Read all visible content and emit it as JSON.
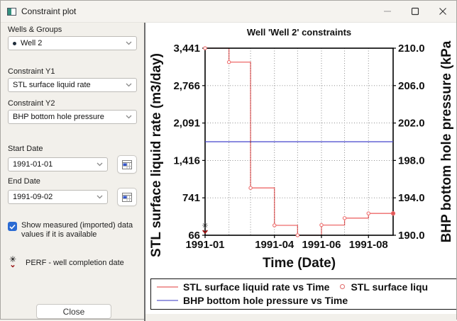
{
  "window": {
    "title": "Constraint plot"
  },
  "sidebar": {
    "wells_groups_label": "Wells & Groups",
    "wells_select_value": "Well 2",
    "constraint_y1_label": "Constraint Y1",
    "constraint_y1_value": "STL surface liquid rate",
    "constraint_y2_label": "Constraint Y2",
    "constraint_y2_value": "BHP bottom hole pressure",
    "start_date_label": "Start Date",
    "start_date_value": "1991-01-01",
    "end_date_label": "End Date",
    "end_date_value": "1991-09-02",
    "checkbox_label": "Show measured (imported) data values if it is available",
    "checkbox_checked": true,
    "perf_label": "PERF - well completion date",
    "close_button": "Close"
  },
  "chart_data": {
    "type": "line",
    "title": "Well 'Well 2' constraints",
    "xlabel": "Time (Date)",
    "y1_label": "STL surface liquid rate (m3/day)",
    "y2_label": "BHP bottom hole pressure (kPa",
    "grid": true,
    "legend_position": "bottom",
    "x_domain_days": [
      0,
      244
    ],
    "x_ticks": [
      {
        "label": "1991-01",
        "day": 0
      },
      {
        "label": "1991-04",
        "day": 90
      },
      {
        "label": "1991-06",
        "day": 151
      },
      {
        "label": "1991-08",
        "day": 212
      }
    ],
    "x_grid_days": [
      31,
      59,
      90,
      120,
      151,
      181,
      212
    ],
    "y1_range": [
      66,
      3441
    ],
    "y1_ticks": [
      {
        "label": "66",
        "value": 66
      },
      {
        "label": "741",
        "value": 741
      },
      {
        "label": "1,416",
        "value": 1416
      },
      {
        "label": "2,091",
        "value": 2091
      },
      {
        "label": "2,766",
        "value": 2766
      },
      {
        "label": "3,441",
        "value": 3441
      }
    ],
    "y1_grid_values": [
      741,
      1416,
      2091,
      2766
    ],
    "y2_range": [
      190,
      210
    ],
    "y2_ticks": [
      {
        "label": "190.0",
        "value": 190
      },
      {
        "label": "194.0",
        "value": 194
      },
      {
        "label": "198.0",
        "value": 198
      },
      {
        "label": "202.0",
        "value": 202
      },
      {
        "label": "206.0",
        "value": 206
      },
      {
        "label": "210.0",
        "value": 210
      }
    ],
    "series": [
      {
        "name": "BHP bottom hole pressure vs Time",
        "axis": "y2",
        "color": "#4444cc",
        "step": false,
        "markers": false,
        "points": [
          [
            0,
            200
          ],
          [
            244,
            200
          ]
        ]
      },
      {
        "name": "STL surface liquid rate vs Time",
        "axis": "y1",
        "color": "#ee6a6a",
        "step": true,
        "markers": true,
        "points": [
          [
            0,
            3441
          ],
          [
            31,
            3190
          ],
          [
            59,
            920
          ],
          [
            90,
            245
          ],
          [
            120,
            66
          ],
          [
            151,
            250
          ],
          [
            181,
            375
          ],
          [
            212,
            460
          ],
          [
            244,
            460
          ]
        ]
      }
    ],
    "perf_marker": {
      "day": 0,
      "symbol": "✳"
    },
    "legend": [
      {
        "label": "STL surface liquid rate vs Time",
        "type": "line",
        "color": "#f09c9c"
      },
      {
        "label": "STL surface liqu",
        "type": "marker",
        "color": "#e06868"
      },
      {
        "label": "BHP bottom hole pressure vs Time",
        "type": "line",
        "color": "#9a9ae0"
      }
    ]
  }
}
